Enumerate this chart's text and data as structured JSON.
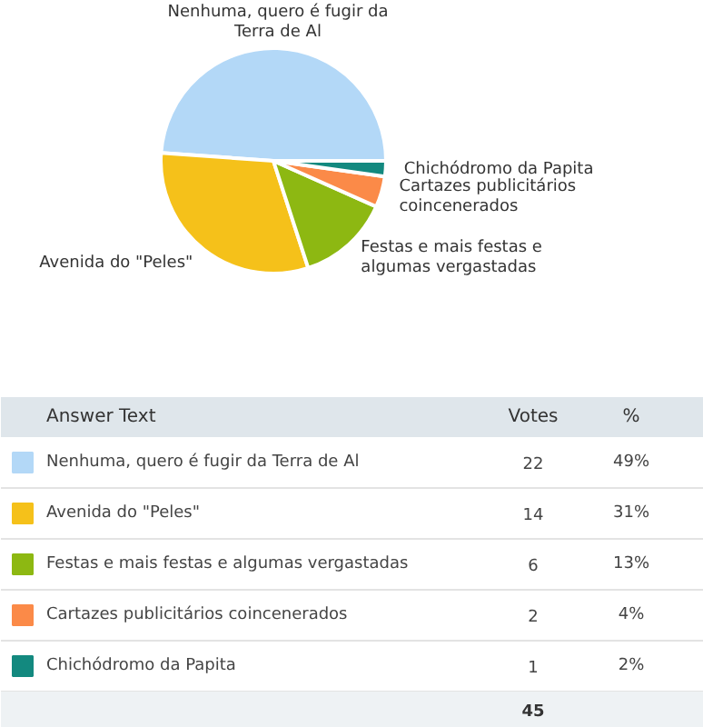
{
  "chart_data": {
    "type": "pie",
    "categories": [
      "Nenhuma, quero é fugir da Terra de Al",
      "Avenida do \"Peles\"",
      "Festas e mais festas e algumas vergastadas",
      "Cartazes publicitários coincenerados",
      "Chichódromo da Papita"
    ],
    "values": [
      22,
      14,
      6,
      2,
      1
    ],
    "colors": [
      "#b3d8f7",
      "#f5c11a",
      "#8db812",
      "#fb8a48",
      "#13897f"
    ],
    "data_labels": true,
    "legend": "bottom",
    "totals": [
      "45"
    ],
    "annotations": [
      "Answer Text",
      "Votes",
      "%",
      "49%",
      "31%",
      "13%",
      "4%",
      "2%"
    ]
  }
}
